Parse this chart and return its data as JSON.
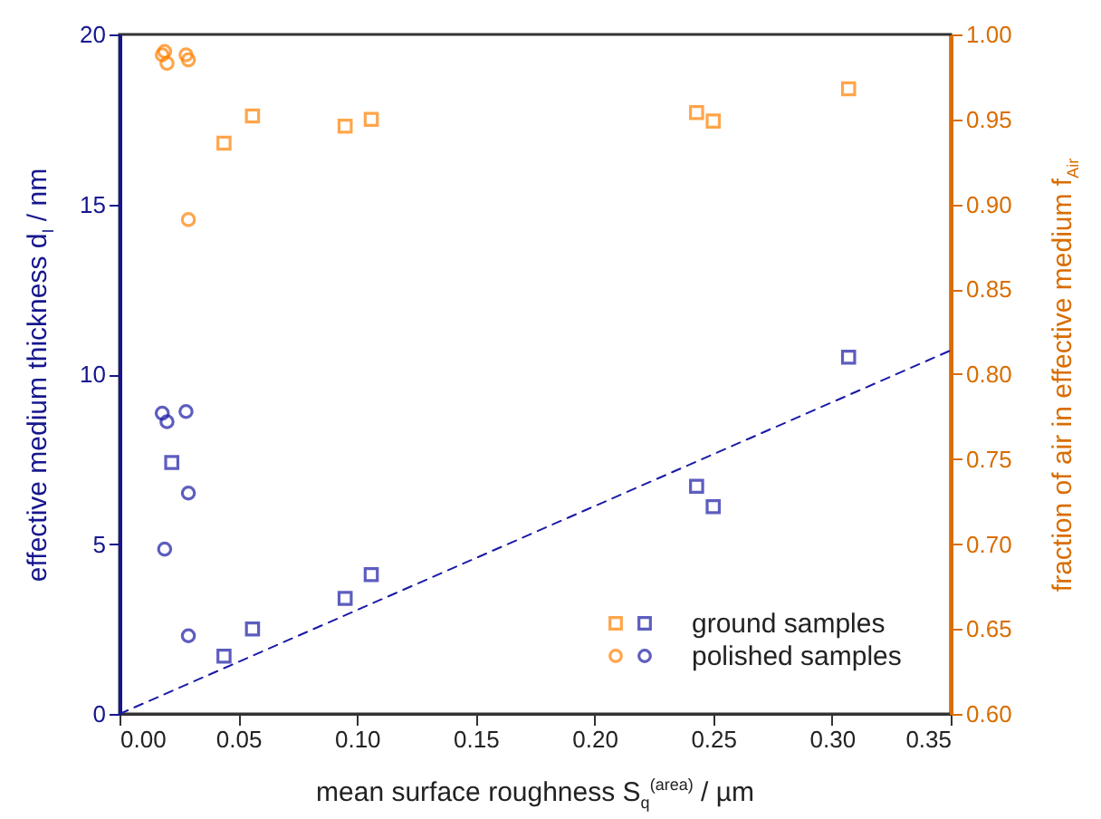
{
  "chart_data": {
    "type": "scatter",
    "xlabel": "mean surface roughness S$_{q}$$^{(area)}$ / µm",
    "ylabel": "effective medium thickness d$_{I}$ / nm",
    "y2label": "fraction of air in effective medium f$_{Air}$",
    "xlim": [
      0,
      0.35
    ],
    "xticks": [
      {
        "value": 0,
        "label": "0.00"
      },
      {
        "value": 0.05,
        "label": "0.05"
      },
      {
        "value": 0.1,
        "label": "0.10"
      },
      {
        "value": 0.15,
        "label": "0.15"
      },
      {
        "value": 0.2,
        "label": "0.20"
      },
      {
        "value": 0.25,
        "label": "0.25"
      },
      {
        "value": 0.3,
        "label": "0.30"
      },
      {
        "value": 0.35,
        "label": "0.35"
      }
    ],
    "ylim": [
      0,
      20
    ],
    "yticks": [
      0,
      5,
      10,
      15,
      20
    ],
    "y2lim": [
      0.6,
      1.0
    ],
    "y2ticks": [
      {
        "value": 0.6,
        "label": "0.60"
      },
      {
        "value": 0.65,
        "label": "0.65"
      },
      {
        "value": 0.7,
        "label": "0.70"
      },
      {
        "value": 0.75,
        "label": "0.75"
      },
      {
        "value": 0.8,
        "label": "0.80"
      },
      {
        "value": 0.85,
        "label": "0.85"
      },
      {
        "value": 0.9,
        "label": "0.90"
      },
      {
        "value": 0.95,
        "label": "0.95"
      },
      {
        "value": 1.0,
        "label": "1.00"
      }
    ],
    "grid": false,
    "legend": "bottom right",
    "series": [
      {
        "color": "#ff8000",
        "axis": "y2",
        "marker": "square",
        "x": [
          0.044,
          0.056,
          0.095,
          0.106,
          0.243,
          0.25,
          0.307
        ],
        "values": [
          0.936,
          0.952,
          0.946,
          0.95,
          0.954,
          0.949,
          0.968
        ]
      },
      {
        "name": "ground samples",
        "color": "#1a1aa6",
        "marker": "square",
        "x": [
          0.022,
          0.044,
          0.056,
          0.095,
          0.106,
          0.243,
          0.25,
          0.307
        ],
        "values": [
          7.4,
          1.7,
          2.5,
          3.4,
          4.1,
          6.7,
          6.1,
          10.5
        ]
      },
      {
        "color": "#ff8000",
        "axis": "y2",
        "marker": "circle",
        "x": [
          0.018,
          0.019,
          0.02,
          0.028,
          0.029,
          0.029
        ],
        "values": [
          0.988,
          0.99,
          0.983,
          0.988,
          0.985,
          0.891
        ]
      },
      {
        "name": "polished samples",
        "color": "#1a1aa6",
        "marker": "circle",
        "x": [
          0.018,
          0.019,
          0.02,
          0.028,
          0.029,
          0.029
        ],
        "values": [
          8.85,
          4.85,
          8.6,
          8.9,
          6.5,
          2.3
        ]
      },
      {
        "type": "line",
        "color": "#1a1aa6",
        "line_style": "dashed",
        "marker": "none",
        "x": [
          0,
          0.35
        ],
        "values": [
          0,
          10.7
        ]
      }
    ]
  }
}
